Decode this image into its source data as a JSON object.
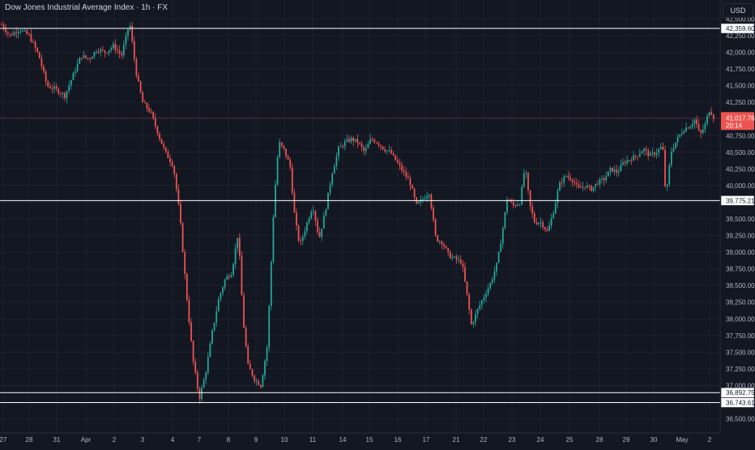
{
  "header": {
    "title": "Dow Jones Industrial Average Index · 1h · FX",
    "currency": "USD"
  },
  "chart_data": {
    "type": "candlestick",
    "title": "Dow Jones Industrial Average Index · 1h · FX",
    "ylim": [
      36400,
      42700
    ],
    "y_ticks": [
      36500,
      36750,
      37000,
      37250,
      37500,
      37750,
      38000,
      38250,
      38500,
      38750,
      39000,
      39250,
      39500,
      39750,
      40000,
      40250,
      40500,
      40750,
      41000,
      41250,
      41500,
      41750,
      42000,
      42250,
      42500
    ],
    "y_tick_labels": [
      "36,500.00",
      "36,750.00",
      "37,000.00",
      "37,250.00",
      "37,500.00",
      "37,750.00",
      "38,000.00",
      "38,250.00",
      "38,500.00",
      "38,750.00",
      "39,000.00",
      "39,250.00",
      "39,500.00",
      "39,750.00",
      "40,000.00",
      "40,250.00",
      "40,500.00",
      "40,750.00",
      "41,000.00",
      "41,250.00",
      "41,500.00",
      "41,750.00",
      "42,000.00",
      "42,250.00",
      "42,500.00"
    ],
    "x_tick_labels": [
      "27",
      "28",
      "31",
      "Apr",
      "2",
      "3",
      "4",
      "7",
      "8",
      "9",
      "10",
      "11",
      "14",
      "15",
      "16",
      "17",
      "21",
      "22",
      "23",
      "24",
      "25",
      "28",
      "29",
      "30",
      "May",
      "2"
    ],
    "horizontal_levels": [
      42359.6,
      39775.21,
      36892.75,
      36743.61
    ],
    "horizontal_level_labels": [
      "42,359.60",
      "39,775.21",
      "36,892.75",
      "36,743.61"
    ],
    "last_price": 41017.76,
    "last_price_label": "41,017.76",
    "countdown": "20:14",
    "colors": {
      "up": "#26a69a",
      "down": "#ef5350",
      "background": "#131722",
      "grid": "#1e222d",
      "level_line": "#ffffff",
      "price_line": "#ef5350",
      "axis_text": "#b2b5be"
    },
    "path_points": [
      [
        0,
        42450
      ],
      [
        12,
        42250
      ],
      [
        24,
        42350
      ],
      [
        36,
        42250
      ],
      [
        48,
        41950
      ],
      [
        58,
        41500
      ],
      [
        68,
        41450
      ],
      [
        80,
        41350
      ],
      [
        90,
        41650
      ],
      [
        100,
        41950
      ],
      [
        110,
        41900
      ],
      [
        120,
        42050
      ],
      [
        130,
        42000
      ],
      [
        140,
        42100
      ],
      [
        150,
        41950
      ],
      [
        160,
        42450
      ],
      [
        168,
        41700
      ],
      [
        176,
        41250
      ],
      [
        186,
        41100
      ],
      [
        196,
        40750
      ],
      [
        204,
        40500
      ],
      [
        214,
        40300
      ],
      [
        222,
        39550
      ],
      [
        230,
        38400
      ],
      [
        238,
        37400
      ],
      [
        246,
        36800
      ],
      [
        254,
        37200
      ],
      [
        262,
        37800
      ],
      [
        270,
        38300
      ],
      [
        278,
        38600
      ],
      [
        286,
        38700
      ],
      [
        294,
        39300
      ],
      [
        300,
        38000
      ],
      [
        306,
        37300
      ],
      [
        314,
        37100
      ],
      [
        322,
        37000
      ],
      [
        330,
        37600
      ],
      [
        338,
        39700
      ],
      [
        344,
        40650
      ],
      [
        350,
        40550
      ],
      [
        358,
        40300
      ],
      [
        364,
        39500
      ],
      [
        370,
        39100
      ],
      [
        378,
        39400
      ],
      [
        386,
        39700
      ],
      [
        394,
        39200
      ],
      [
        402,
        39650
      ],
      [
        410,
        40200
      ],
      [
        418,
        40550
      ],
      [
        426,
        40650
      ],
      [
        434,
        40700
      ],
      [
        442,
        40650
      ],
      [
        450,
        40500
      ],
      [
        458,
        40700
      ],
      [
        466,
        40650
      ],
      [
        474,
        40550
      ],
      [
        482,
        40500
      ],
      [
        490,
        40350
      ],
      [
        498,
        40200
      ],
      [
        506,
        40050
      ],
      [
        514,
        39700
      ],
      [
        522,
        39800
      ],
      [
        530,
        39900
      ],
      [
        538,
        39200
      ],
      [
        546,
        39150
      ],
      [
        554,
        38950
      ],
      [
        562,
        38900
      ],
      [
        570,
        38850
      ],
      [
        576,
        38400
      ],
      [
        582,
        37900
      ],
      [
        590,
        38150
      ],
      [
        598,
        38350
      ],
      [
        606,
        38550
      ],
      [
        614,
        38850
      ],
      [
        620,
        39300
      ],
      [
        626,
        39800
      ],
      [
        634,
        39700
      ],
      [
        642,
        39750
      ],
      [
        648,
        40300
      ],
      [
        654,
        39700
      ],
      [
        660,
        39450
      ],
      [
        668,
        39450
      ],
      [
        676,
        39300
      ],
      [
        684,
        39650
      ],
      [
        690,
        40000
      ],
      [
        698,
        40150
      ],
      [
        706,
        40100
      ],
      [
        714,
        39950
      ],
      [
        722,
        40000
      ],
      [
        730,
        39950
      ],
      [
        738,
        40050
      ],
      [
        746,
        40100
      ],
      [
        754,
        40250
      ],
      [
        762,
        40200
      ],
      [
        770,
        40350
      ],
      [
        778,
        40400
      ],
      [
        786,
        40450
      ],
      [
        794,
        40550
      ],
      [
        802,
        40450
      ],
      [
        810,
        40500
      ],
      [
        818,
        40600
      ],
      [
        822,
        39800
      ],
      [
        828,
        40500
      ],
      [
        836,
        40700
      ],
      [
        844,
        40850
      ],
      [
        852,
        40900
      ],
      [
        858,
        41000
      ],
      [
        864,
        40750
      ],
      [
        870,
        40900
      ],
      [
        876,
        41150
      ],
      [
        882,
        41000
      ]
    ]
  }
}
